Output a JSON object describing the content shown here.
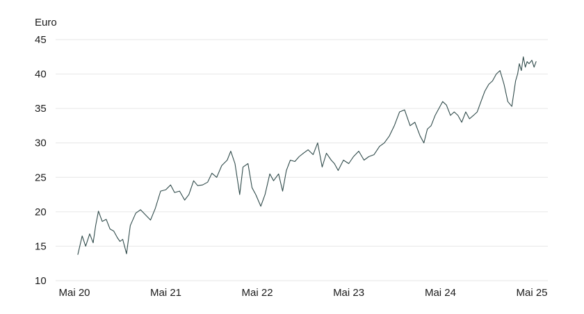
{
  "chart_data": {
    "type": "line",
    "ylabel": "Euro",
    "xlabel": "",
    "ylim": [
      10,
      45
    ],
    "y_ticks": [
      45,
      40,
      35,
      30,
      25,
      20,
      15,
      10
    ],
    "x_ticks": [
      {
        "label": "Mai 20",
        "date": "2020-05"
      },
      {
        "label": "Mai 21",
        "date": "2021-05"
      },
      {
        "label": "Mai 22",
        "date": "2022-05"
      },
      {
        "label": "Mai 23",
        "date": "2023-05"
      },
      {
        "label": "Mai 24",
        "date": "2024-05"
      },
      {
        "label": "Mai 25",
        "date": "2025-05"
      }
    ],
    "grid": true,
    "line_color": "#2f4a4a",
    "series": [
      {
        "x": [
          "2020-05-15",
          "2020-06-01",
          "2020-06-15",
          "2020-07-01",
          "2020-07-15",
          "2020-07-25",
          "2020-08-05",
          "2020-08-20",
          "2020-09-05",
          "2020-09-20",
          "2020-10-05",
          "2020-10-20",
          "2020-10-30",
          "2020-11-10",
          "2020-11-25",
          "2020-12-10",
          "2021-01-01",
          "2021-01-20",
          "2021-02-10",
          "2021-03-01",
          "2021-03-20",
          "2021-04-10",
          "2021-05-01",
          "2021-05-20",
          "2021-06-05",
          "2021-06-25",
          "2021-07-15",
          "2021-08-01",
          "2021-08-20",
          "2021-09-05",
          "2021-09-25",
          "2021-10-15",
          "2021-11-01",
          "2021-11-20",
          "2021-12-10",
          "2022-01-01",
          "2022-01-15",
          "2022-02-01",
          "2022-02-20",
          "2022-03-05",
          "2022-03-25",
          "2022-04-10",
          "2022-04-25",
          "2022-05-15",
          "2022-06-01",
          "2022-06-20",
          "2022-07-05",
          "2022-07-25",
          "2022-08-10",
          "2022-08-25",
          "2022-09-10",
          "2022-09-28",
          "2022-10-15",
          "2022-11-01",
          "2022-11-20",
          "2022-12-10",
          "2022-12-28",
          "2023-01-15",
          "2023-02-01",
          "2023-02-20",
          "2023-03-05",
          "2023-03-20",
          "2023-04-10",
          "2023-05-01",
          "2023-05-20",
          "2023-06-10",
          "2023-07-01",
          "2023-07-20",
          "2023-08-10",
          "2023-09-01",
          "2023-09-20",
          "2023-10-10",
          "2023-10-30",
          "2023-11-20",
          "2023-12-10",
          "2024-01-01",
          "2024-01-20",
          "2024-02-10",
          "2024-02-25",
          "2024-03-10",
          "2024-03-25",
          "2024-04-10",
          "2024-04-25",
          "2024-05-10",
          "2024-05-25",
          "2024-06-10",
          "2024-06-25",
          "2024-07-10",
          "2024-07-25",
          "2024-08-10",
          "2024-08-25",
          "2024-09-10",
          "2024-09-25",
          "2024-10-10",
          "2024-10-25",
          "2024-11-10",
          "2024-11-25",
          "2024-12-10",
          "2024-12-25",
          "2025-01-10",
          "2025-01-25",
          "2025-02-10",
          "2025-02-25",
          "2025-03-05",
          "2025-03-12",
          "2025-03-20",
          "2025-03-28",
          "2025-04-05",
          "2025-04-12",
          "2025-04-20",
          "2025-05-01",
          "2025-05-10",
          "2025-05-18"
        ],
        "y": [
          13.8,
          16.5,
          15.0,
          16.8,
          15.5,
          18.0,
          20.1,
          18.6,
          18.9,
          17.5,
          17.2,
          16.2,
          15.7,
          16.0,
          13.9,
          18.0,
          19.8,
          20.3,
          19.5,
          18.8,
          20.5,
          23.0,
          23.2,
          23.9,
          22.8,
          23.0,
          21.7,
          22.5,
          24.5,
          23.8,
          23.9,
          24.3,
          25.6,
          25.0,
          26.7,
          27.5,
          28.8,
          27.0,
          22.5,
          26.5,
          27.0,
          23.5,
          22.5,
          20.8,
          22.5,
          25.5,
          24.5,
          25.5,
          23.0,
          26.0,
          27.5,
          27.3,
          28.0,
          28.5,
          29.0,
          28.3,
          30.0,
          26.5,
          28.5,
          27.5,
          27.0,
          26.0,
          27.5,
          27.0,
          28.0,
          28.8,
          27.5,
          28.0,
          28.3,
          29.5,
          30.0,
          31.0,
          32.5,
          34.5,
          34.8,
          32.5,
          33.0,
          31.0,
          30.0,
          32.0,
          32.5,
          34.0,
          35.0,
          36.0,
          35.5,
          34.0,
          34.5,
          34.0,
          33.0,
          34.5,
          33.5,
          34.0,
          34.5,
          36.0,
          37.5,
          38.5,
          39.0,
          40.0,
          40.5,
          38.5,
          36.0,
          35.3,
          39.0,
          40.0,
          41.5,
          40.5,
          42.5,
          41.0,
          41.8,
          41.5,
          42.0,
          41.0,
          41.8
        ]
      }
    ]
  }
}
